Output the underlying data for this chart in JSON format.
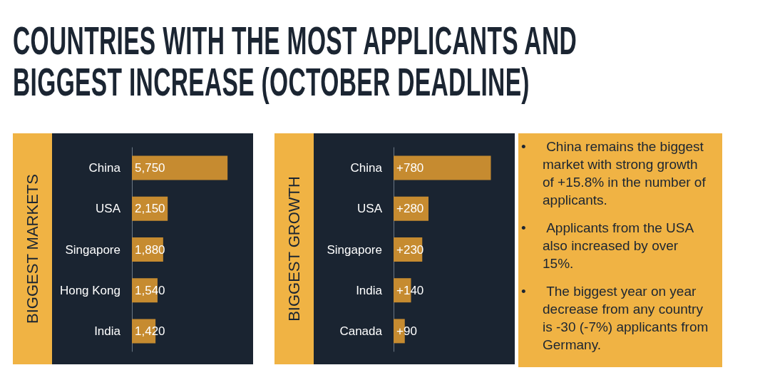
{
  "chart_data": [
    {
      "type": "bar",
      "title": "COUNTRIES WITH THE MOST APPLICANTS AND BIGGEST INCREASE (OCTOBER DEADLINE)",
      "orientation": "horizontal",
      "ylabel": "BIGGEST MARKETS",
      "categories": [
        "China",
        "USA",
        "Singapore",
        "Hong Kong",
        "India"
      ],
      "values": [
        5750,
        2150,
        1880,
        1540,
        1420
      ],
      "value_labels": [
        "5,750",
        "2,150",
        "1,880",
        "1,540",
        "1,420"
      ],
      "color": "#c68b30"
    },
    {
      "type": "bar",
      "orientation": "horizontal",
      "ylabel": "BIGGEST GROWTH",
      "categories": [
        "China",
        "USA",
        "Singapore",
        "India",
        "Canada"
      ],
      "values": [
        780,
        280,
        230,
        140,
        90
      ],
      "value_labels": [
        "+780",
        "+280",
        "+230",
        "+140",
        "+90"
      ],
      "color": "#c68b30"
    },
    {
      "type": "other",
      "annotations": [
        "•  China remains the biggest market with strong growth of +15.8% in the number of applicants.",
        "•  Applicants from the USA also increased by over 15%.",
        "•  The biggest year on year decrease from any country is -30 (-7%) applicants from Germany."
      ]
    }
  ]
}
